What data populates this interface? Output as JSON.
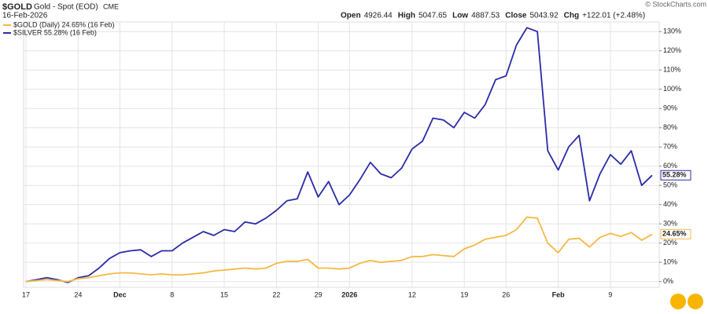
{
  "chart_data": {
    "type": "line",
    "header": {
      "symbol": "$GOLD",
      "name": "Gold - Spot (EOD)",
      "exchange": "CME",
      "date": "16-Feb-2026",
      "stats": [
        [
          "Open",
          "4926.44"
        ],
        [
          "High",
          "5047.65"
        ],
        [
          "Low",
          "4887.53"
        ],
        [
          "Close",
          "5043.92"
        ],
        [
          "Chg",
          "+122.01 (+2.48%)"
        ]
      ],
      "credit": "© StockCharts.com"
    },
    "categories": [
      "17",
      null,
      null,
      null,
      null,
      "24",
      null,
      null,
      null,
      "Dec",
      null,
      null,
      null,
      null,
      "8",
      null,
      null,
      null,
      null,
      "15",
      null,
      null,
      null,
      null,
      "22",
      null,
      null,
      null,
      "29",
      null,
      null,
      "2026",
      null,
      null,
      null,
      null,
      null,
      "12",
      null,
      null,
      null,
      null,
      "19",
      null,
      null,
      null,
      "26",
      null,
      null,
      null,
      null,
      "Feb",
      null,
      null,
      null,
      null,
      "9",
      null,
      null,
      null,
      null
    ],
    "series": [
      {
        "name": "$GOLD (Daily) 24.65% (16 Feb)",
        "color": "#f5b942",
        "end_label": "24.65%",
        "values": [
          0,
          0.5,
          1,
          0.5,
          0,
          1.5,
          2,
          3,
          4,
          4.5,
          4.5,
          4,
          3.5,
          4,
          3.5,
          3.5,
          4,
          4.5,
          5.5,
          6,
          6.5,
          7,
          6.5,
          7,
          9.5,
          10.5,
          10.5,
          11.5,
          7,
          7,
          6.5,
          7,
          9.5,
          11,
          10,
          10.5,
          11,
          13,
          13,
          14,
          13.5,
          13,
          17,
          19,
          22,
          23,
          24,
          27,
          33.5,
          33,
          20,
          15,
          22,
          22.5,
          18,
          23,
          25,
          23.5,
          25.5,
          21.5,
          24.65
        ]
      },
      {
        "name": "$SILVER 55.28% (16 Feb)",
        "color": "#2b2ba8",
        "end_label": "55.28%",
        "values": [
          0,
          1,
          2,
          1,
          -0.5,
          2,
          3,
          7,
          12,
          15,
          16,
          16.5,
          13,
          16,
          16,
          20,
          23,
          26,
          24,
          27,
          26,
          31,
          30,
          33,
          37,
          42,
          43,
          57,
          44,
          52,
          40,
          45,
          53,
          62,
          56,
          54,
          59,
          69,
          73,
          85,
          84,
          80,
          88,
          85,
          92,
          105,
          107,
          123,
          132,
          130,
          68,
          58,
          70,
          76,
          42,
          56,
          66,
          61,
          68,
          50,
          55.28
        ]
      }
    ],
    "ylim": [
      -3,
      135
    ],
    "yticks": [
      {
        "value": 0,
        "label": "0%"
      },
      {
        "value": 10,
        "label": "10%"
      },
      {
        "value": 20,
        "label": "20%"
      },
      {
        "value": 30,
        "label": "30%"
      },
      {
        "value": 40,
        "label": "40%"
      },
      {
        "value": 50,
        "label": "50%"
      },
      {
        "value": 60,
        "label": "60%"
      },
      {
        "value": 70,
        "label": "70%"
      },
      {
        "value": 80,
        "label": "80%"
      },
      {
        "value": 90,
        "label": "90%"
      },
      {
        "value": 100,
        "label": "100%"
      },
      {
        "value": 110,
        "label": "110%"
      },
      {
        "value": 120,
        "label": "120%"
      },
      {
        "value": 130,
        "label": "130%"
      }
    ],
    "grid": true
  }
}
